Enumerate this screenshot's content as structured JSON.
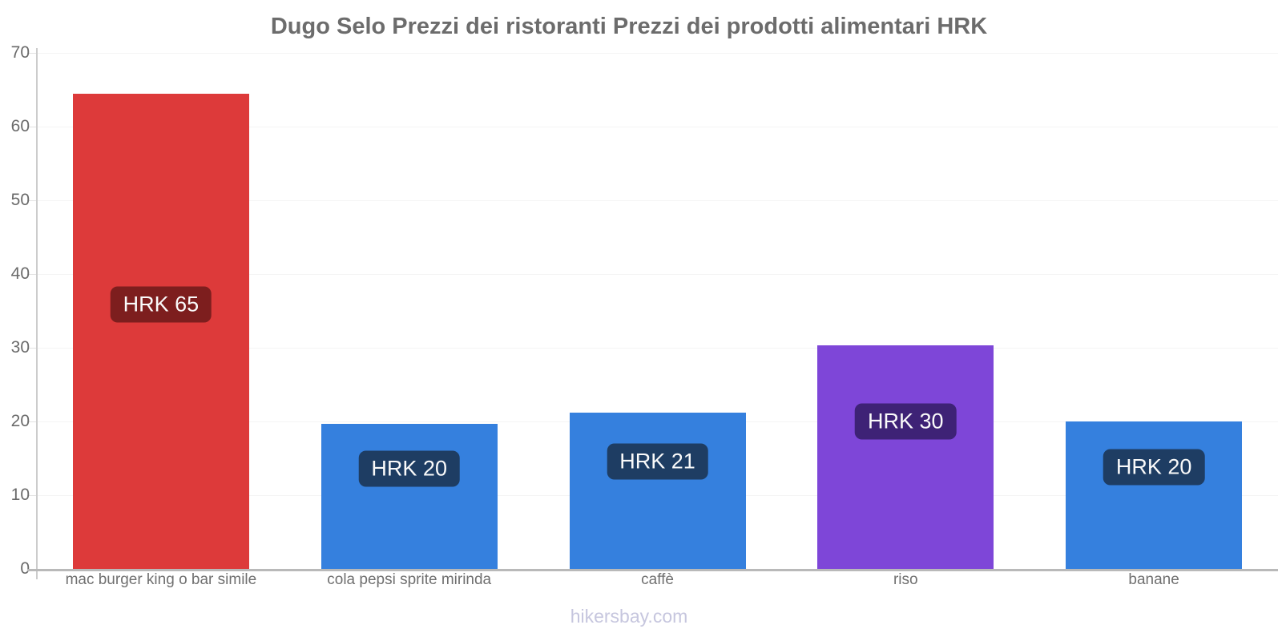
{
  "chart_data": {
    "type": "bar",
    "title": "Dugo Selo Prezzi dei ristoranti Prezzi dei prodotti alimentari HRK",
    "currency": "HRK",
    "categories": [
      "mac burger king o bar simile",
      "cola pepsi sprite mirinda",
      "caffè",
      "riso",
      "banane"
    ],
    "values": [
      64.5,
      19.7,
      21.2,
      30.3,
      20.0
    ],
    "bar_labels": [
      "HRK 65",
      "HRK 20",
      "HRK 21",
      "HRK 30",
      "HRK 20"
    ],
    "bar_colors": [
      "#dd3a3a",
      "#3580de",
      "#3580de",
      "#7e46d8",
      "#3580de"
    ],
    "label_bg_colors": [
      "#7d1e1e",
      "#1e3d63",
      "#1e3d63",
      "#3e2276",
      "#1e3d63"
    ],
    "ylim": [
      0,
      70
    ],
    "yticks": [
      0,
      10,
      20,
      30,
      40,
      50,
      60,
      70
    ],
    "grid": true,
    "legend_position": "none",
    "xlabel": "",
    "ylabel": ""
  },
  "theme": {
    "title_color": "#6c6c6c",
    "tick_color": "#6a6a6a",
    "category_color": "#707070",
    "axis_color": "#cccccc",
    "baseline_color": "#b9b9b9",
    "gridline_color": "#f4f4f4",
    "label_text_color": "#fafafa",
    "footer_color": "#c6c6de"
  },
  "footer": {
    "label": "hikersbay.com"
  }
}
